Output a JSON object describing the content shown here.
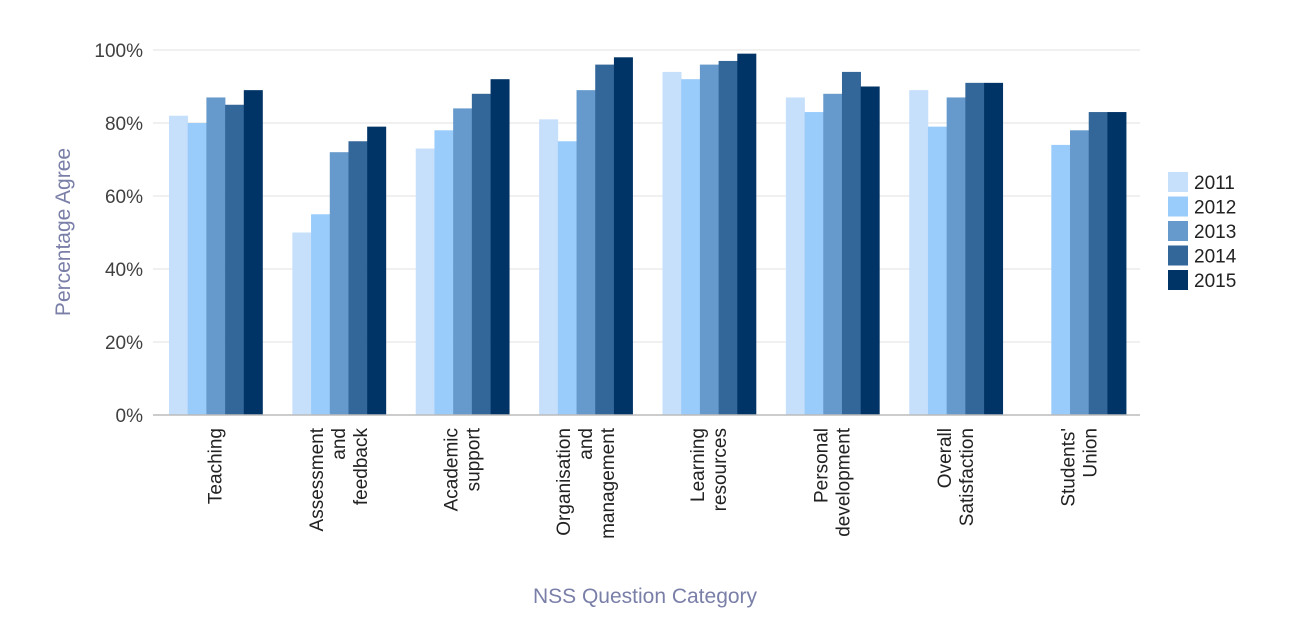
{
  "chart_data": {
    "type": "bar",
    "title": "",
    "xlabel": "NSS Question Category",
    "ylabel": "Percentage Agree",
    "ylim": [
      0,
      100
    ],
    "yticks": [
      "0%",
      "20%",
      "40%",
      "60%",
      "80%",
      "100%"
    ],
    "grid": true,
    "legend_position": "right",
    "categories": [
      [
        "Teaching"
      ],
      [
        "Assessment",
        "and",
        "feedback"
      ],
      [
        "Academic",
        "support"
      ],
      [
        "Organisation",
        "and",
        "management"
      ],
      [
        "Learning",
        "resources"
      ],
      [
        "Personal",
        "development"
      ],
      [
        "Overall",
        "Satisfaction"
      ],
      [
        "Students'",
        "Union"
      ]
    ],
    "series": [
      {
        "name": "2011",
        "color": "#c6dffb",
        "values": [
          82,
          50,
          73,
          81,
          94,
          87,
          89,
          null
        ]
      },
      {
        "name": "2012",
        "color": "#99cbfb",
        "values": [
          80,
          55,
          78,
          75,
          92,
          83,
          79,
          74
        ]
      },
      {
        "name": "2013",
        "color": "#6699cc",
        "values": [
          87,
          72,
          84,
          89,
          96,
          88,
          87,
          78
        ]
      },
      {
        "name": "2014",
        "color": "#336699",
        "values": [
          85,
          75,
          88,
          96,
          97,
          94,
          91,
          83
        ]
      },
      {
        "name": "2015",
        "color": "#003366",
        "values": [
          89,
          79,
          92,
          98,
          99,
          90,
          91,
          83
        ]
      }
    ]
  }
}
